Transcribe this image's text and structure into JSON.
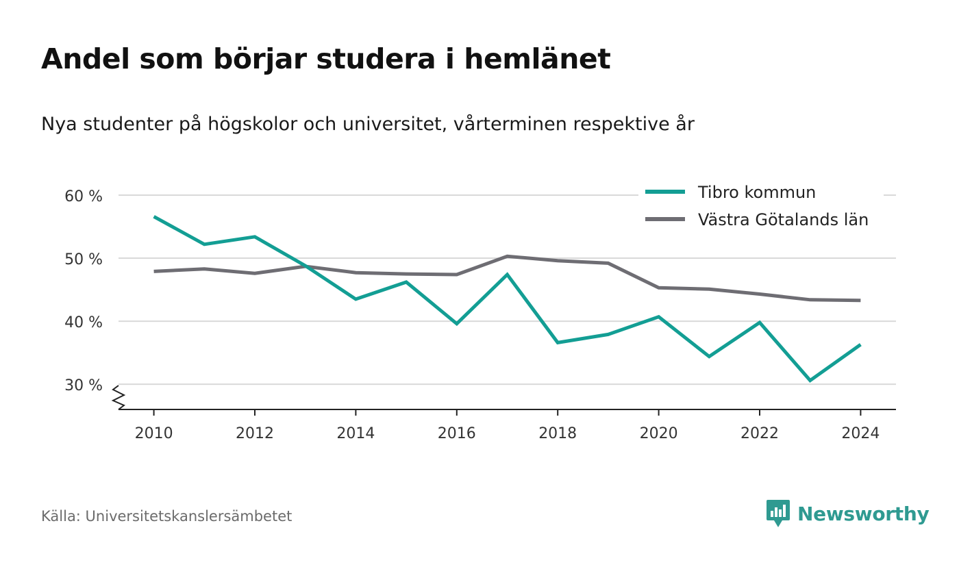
{
  "header": {
    "title": "Andel som börjar studera i hemlänet",
    "subtitle": "Nya studenter på högskolor och universitet, vårterminen respektive år"
  },
  "footer": {
    "source": "Källa: Universitetskanslersämbetet",
    "brand": "Newsworthy"
  },
  "colors": {
    "tibro": "#139e94",
    "vastra": "#6e6d73",
    "grid": "#d9d9d9",
    "axis": "#222222",
    "brand": "#2f9a91"
  },
  "chart_data": {
    "type": "line",
    "x": [
      2010,
      2011,
      2012,
      2013,
      2014,
      2015,
      2016,
      2017,
      2018,
      2019,
      2020,
      2021,
      2022,
      2023,
      2024
    ],
    "series": [
      {
        "name": "Tibro kommun",
        "values": [
          56.6,
          52.2,
          53.4,
          48.8,
          43.5,
          46.2,
          39.6,
          47.4,
          36.6,
          37.9,
          40.7,
          34.4,
          39.8,
          30.6,
          36.3
        ]
      },
      {
        "name": "Västra Götalands län",
        "values": [
          47.9,
          48.3,
          47.6,
          48.7,
          47.7,
          47.5,
          47.4,
          50.3,
          49.6,
          49.2,
          45.3,
          45.1,
          44.3,
          43.4,
          43.3
        ]
      }
    ],
    "x_ticks": [
      2010,
      2012,
      2014,
      2016,
      2018,
      2020,
      2022,
      2024
    ],
    "x_tick_labels": [
      "2010",
      "2012",
      "2014",
      "2016",
      "2018",
      "2020",
      "2022",
      "2024"
    ],
    "y_ticks": [
      30,
      40,
      50,
      60
    ],
    "y_tick_labels": [
      "30 %",
      "40 %",
      "50 %",
      "60 %"
    ],
    "xlim": [
      2009.3,
      2024.7
    ],
    "ylim": [
      26,
      60
    ],
    "grid": true,
    "legend": "top-right",
    "axis_break": true
  }
}
